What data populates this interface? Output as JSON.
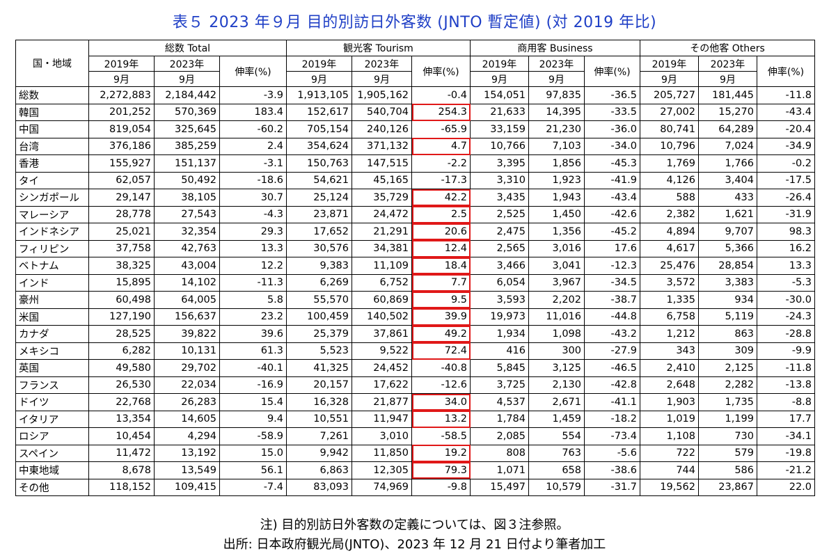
{
  "title": "表５ 2023 年９月 目的別訪日外客数 (JNTO 暫定値) (対 2019 年比)",
  "header": {
    "region": "国・地域",
    "groups": [
      "総数 Total",
      "観光客 Tourism",
      "商用客 Business",
      "その他客 Others"
    ],
    "year2019": "2019年",
    "year2023": "2023年",
    "month": "9月",
    "rate": "伸率(%)"
  },
  "rows": [
    {
      "name": "総数",
      "v": [
        "2,272,883",
        "2,184,442",
        "-3.9",
        "1,913,105",
        "1,905,162",
        "-0.4",
        "154,051",
        "97,835",
        "-36.5",
        "205,727",
        "181,445",
        "-11.8"
      ]
    },
    {
      "name": "韓国",
      "v": [
        "201,252",
        "570,369",
        "183.4",
        "152,617",
        "540,704",
        "254.3",
        "21,633",
        "14,395",
        "-33.5",
        "27,002",
        "15,270",
        "-43.4"
      ]
    },
    {
      "name": "中国",
      "v": [
        "819,054",
        "325,645",
        "-60.2",
        "705,154",
        "240,126",
        "-65.9",
        "33,159",
        "21,230",
        "-36.0",
        "80,741",
        "64,289",
        "-20.4"
      ]
    },
    {
      "name": "台湾",
      "v": [
        "376,186",
        "385,259",
        "2.4",
        "354,624",
        "371,132",
        "4.7",
        "10,766",
        "7,103",
        "-34.0",
        "10,796",
        "7,024",
        "-34.9"
      ]
    },
    {
      "name": "香港",
      "v": [
        "155,927",
        "151,137",
        "-3.1",
        "150,763",
        "147,515",
        "-2.2",
        "3,395",
        "1,856",
        "-45.3",
        "1,769",
        "1,766",
        "-0.2"
      ]
    },
    {
      "name": "タイ",
      "v": [
        "62,057",
        "50,492",
        "-18.6",
        "54,621",
        "45,165",
        "-17.3",
        "3,310",
        "1,923",
        "-41.9",
        "4,126",
        "3,404",
        "-17.5"
      ]
    },
    {
      "name": "シンガポール",
      "v": [
        "29,147",
        "38,105",
        "30.7",
        "25,124",
        "35,729",
        "42.2",
        "3,435",
        "1,943",
        "-43.4",
        "588",
        "433",
        "-26.4"
      ]
    },
    {
      "name": "マレーシア",
      "v": [
        "28,778",
        "27,543",
        "-4.3",
        "23,871",
        "24,472",
        "2.5",
        "2,525",
        "1,450",
        "-42.6",
        "2,382",
        "1,621",
        "-31.9"
      ]
    },
    {
      "name": "インドネシア",
      "v": [
        "25,021",
        "32,354",
        "29.3",
        "17,652",
        "21,291",
        "20.6",
        "2,475",
        "1,356",
        "-45.2",
        "4,894",
        "9,707",
        "98.3"
      ]
    },
    {
      "name": "フィリピン",
      "v": [
        "37,758",
        "42,763",
        "13.3",
        "30,576",
        "34,381",
        "12.4",
        "2,565",
        "3,016",
        "17.6",
        "4,617",
        "5,366",
        "16.2"
      ]
    },
    {
      "name": "ベトナム",
      "v": [
        "38,325",
        "43,004",
        "12.2",
        "9,383",
        "11,109",
        "18.4",
        "3,466",
        "3,041",
        "-12.3",
        "25,476",
        "28,854",
        "13.3"
      ]
    },
    {
      "name": "インド",
      "v": [
        "15,895",
        "14,102",
        "-11.3",
        "6,269",
        "6,752",
        "7.7",
        "6,054",
        "3,967",
        "-34.5",
        "3,572",
        "3,383",
        "-5.3"
      ]
    },
    {
      "name": "豪州",
      "v": [
        "60,498",
        "64,005",
        "5.8",
        "55,570",
        "60,869",
        "9.5",
        "3,593",
        "2,202",
        "-38.7",
        "1,335",
        "934",
        "-30.0"
      ]
    },
    {
      "name": "米国",
      "v": [
        "127,190",
        "156,637",
        "23.2",
        "100,459",
        "140,502",
        "39.9",
        "19,973",
        "11,016",
        "-44.8",
        "6,758",
        "5,119",
        "-24.3"
      ]
    },
    {
      "name": "カナダ",
      "v": [
        "28,525",
        "39,822",
        "39.6",
        "25,379",
        "37,861",
        "49.2",
        "1,934",
        "1,098",
        "-43.2",
        "1,212",
        "863",
        "-28.8"
      ]
    },
    {
      "name": "メキシコ",
      "v": [
        "6,282",
        "10,131",
        "61.3",
        "5,523",
        "9,522",
        "72.4",
        "416",
        "300",
        "-27.9",
        "343",
        "309",
        "-9.9"
      ]
    },
    {
      "name": "英国",
      "v": [
        "49,580",
        "29,702",
        "-40.1",
        "41,325",
        "24,452",
        "-40.8",
        "5,845",
        "3,125",
        "-46.5",
        "2,410",
        "2,125",
        "-11.8"
      ]
    },
    {
      "name": "フランス",
      "v": [
        "26,530",
        "22,034",
        "-16.9",
        "20,157",
        "17,622",
        "-12.6",
        "3,725",
        "2,130",
        "-42.8",
        "2,648",
        "2,282",
        "-13.8"
      ]
    },
    {
      "name": "ドイツ",
      "v": [
        "22,768",
        "26,283",
        "15.4",
        "16,328",
        "21,877",
        "34.0",
        "4,537",
        "2,671",
        "-41.1",
        "1,903",
        "1,735",
        "-8.8"
      ]
    },
    {
      "name": "イタリア",
      "v": [
        "13,354",
        "14,605",
        "9.4",
        "10,551",
        "11,947",
        "13.2",
        "1,784",
        "1,459",
        "-18.2",
        "1,019",
        "1,199",
        "17.7"
      ]
    },
    {
      "name": "ロシア",
      "v": [
        "10,454",
        "4,294",
        "-58.9",
        "7,261",
        "3,010",
        "-58.5",
        "2,085",
        "554",
        "-73.4",
        "1,108",
        "730",
        "-34.1"
      ]
    },
    {
      "name": "スペイン",
      "v": [
        "11,472",
        "13,192",
        "15.0",
        "9,942",
        "11,850",
        "19.2",
        "808",
        "763",
        "-5.6",
        "722",
        "579",
        "-19.8"
      ]
    },
    {
      "name": "中東地域",
      "v": [
        "8,678",
        "13,549",
        "56.1",
        "6,863",
        "12,305",
        "79.3",
        "1,071",
        "658",
        "-38.6",
        "744",
        "586",
        "-21.2"
      ]
    },
    {
      "name": "その他",
      "v": [
        "118,152",
        "109,415",
        "-7.4",
        "83,093",
        "74,969",
        "-9.8",
        "15,497",
        "10,579",
        "-31.7",
        "19,562",
        "23,867",
        "22.0"
      ]
    }
  ],
  "highlight_color": "#e01818",
  "notes": {
    "note1": "注) 目的別訪日外客数の定義については、図３注参照。",
    "note2": "出所: 日本政府観光局(JNTO)、2023 年 12 月 21 日付より筆者加工"
  }
}
